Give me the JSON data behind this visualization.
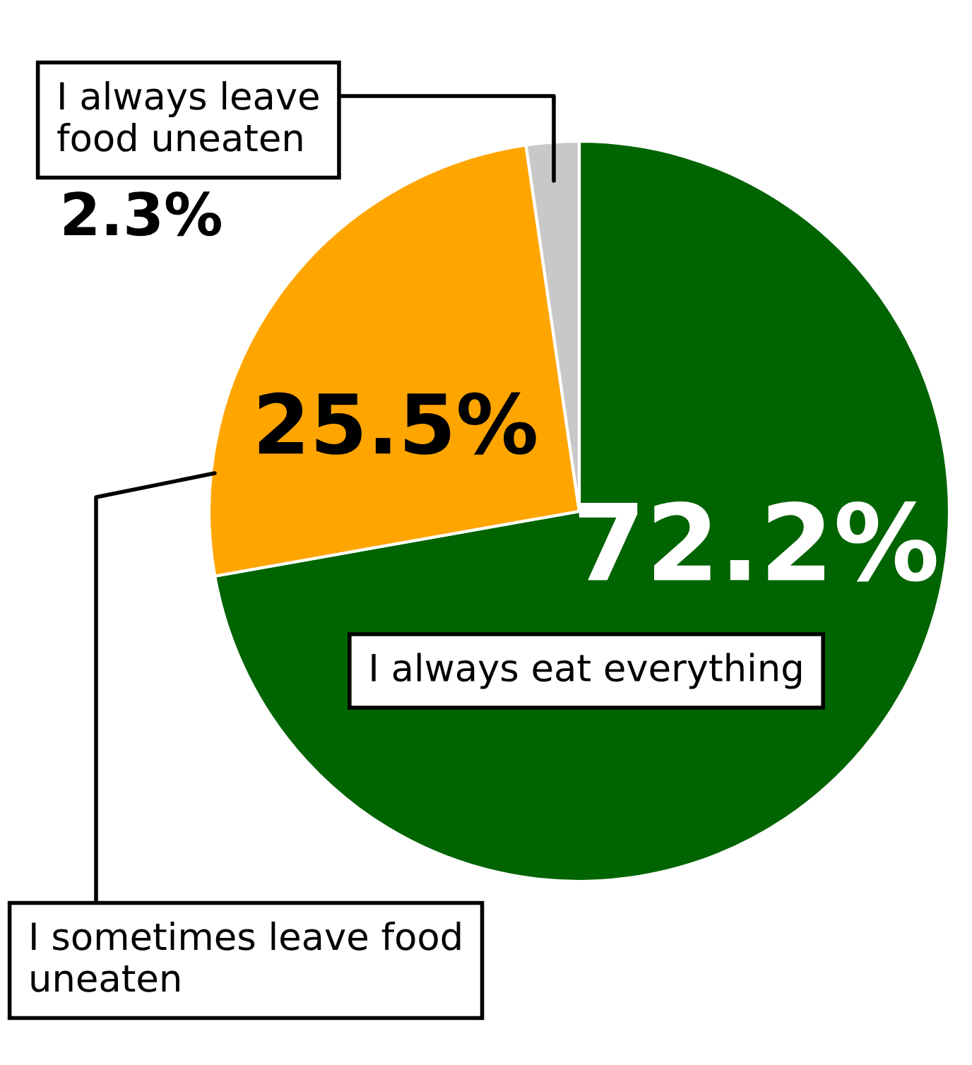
{
  "chart_data": {
    "type": "pie",
    "categories": [
      "I always eat everything",
      "I sometimes leave food\nuneaten",
      "I always leave\nfood uneaten"
    ],
    "values": [
      72.2,
      25.5,
      2.3
    ],
    "colors": [
      "#006400",
      "#ffa500",
      "#c8c8c8"
    ],
    "value_labels": [
      "72.2%",
      "25.5%",
      "2.3%"
    ],
    "legend": false
  }
}
